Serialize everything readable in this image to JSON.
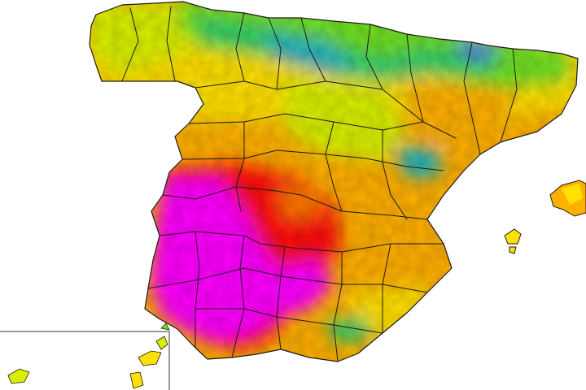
{
  "map": {
    "region": "Spain",
    "type": "temperature heatmap",
    "background_color": "#ffffff",
    "border_color": "#1a1a1a",
    "palette": [
      "#ff00ff",
      "#ff1010",
      "#ff7a00",
      "#ffb000",
      "#ffe000",
      "#d8f000",
      "#70e020",
      "#2ccf6a",
      "#1fb3c0",
      "#5a70e0"
    ]
  }
}
